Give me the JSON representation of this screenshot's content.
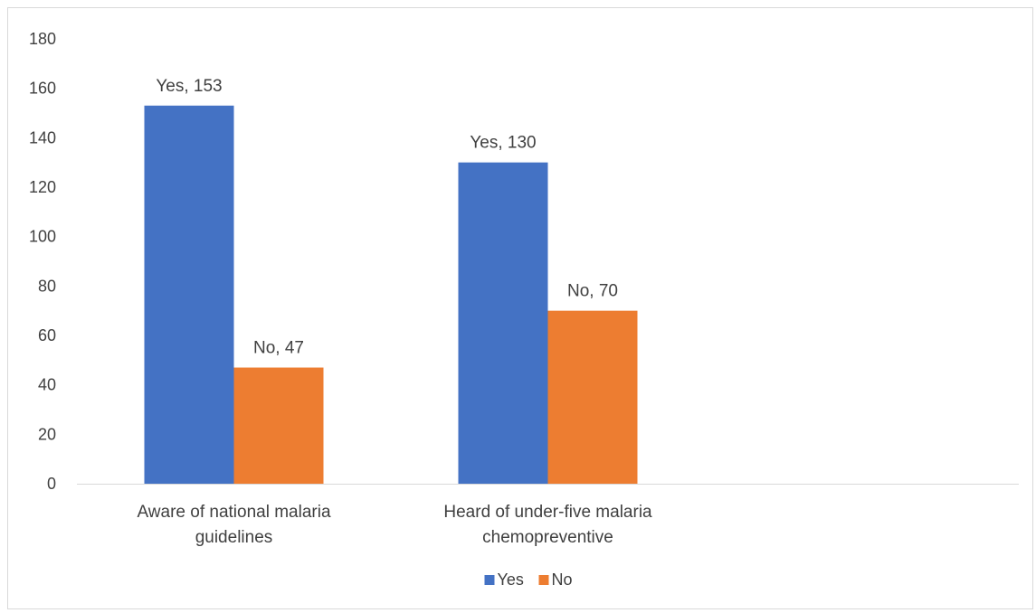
{
  "chart_data": {
    "type": "bar",
    "categories": [
      [
        "Aware of national malaria",
        "guidelines"
      ],
      [
        "Heard of under-five malaria",
        "chemopreventive"
      ],
      [
        "",
        ""
      ]
    ],
    "series": [
      {
        "name": "Yes",
        "values": [
          153,
          130,
          null
        ],
        "color": "#4472c4",
        "data_labels": [
          "Yes, 153",
          "Yes, 130",
          ""
        ]
      },
      {
        "name": "No",
        "values": [
          47,
          70,
          null
        ],
        "color": "#ed7d31",
        "data_labels": [
          "No, 47",
          "No, 70",
          ""
        ]
      }
    ],
    "ylim": [
      0,
      180
    ],
    "y_ticks": [
      0,
      20,
      40,
      60,
      80,
      100,
      120,
      140,
      160,
      180
    ],
    "grid": false,
    "legend_position": "bottom-center"
  }
}
